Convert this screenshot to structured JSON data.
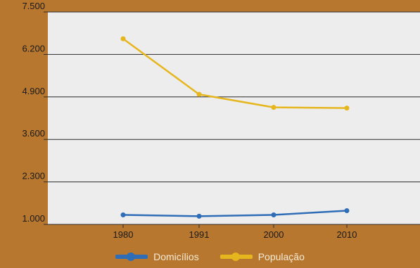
{
  "chart_data": {
    "type": "line",
    "categories": [
      "1980",
      "1991",
      "2000",
      "2010"
    ],
    "series": [
      {
        "name": "Domicílios",
        "values": [
          1290,
          1250,
          1290,
          1420
        ],
        "color": "#2f6db6"
      },
      {
        "name": "População",
        "values": [
          6680,
          4980,
          4580,
          4560
        ],
        "color": "#e6b61e"
      }
    ],
    "ylim": [
      1000,
      7500
    ],
    "yticks": [
      1000,
      2300,
      3600,
      4900,
      6200,
      7500
    ],
    "ytick_labels": [
      "1.000",
      "2.300",
      "3.600",
      "4.900",
      "6.200",
      "7.500"
    ],
    "grid": true,
    "legend_position": "bottom",
    "plot_background": "#ededed"
  }
}
